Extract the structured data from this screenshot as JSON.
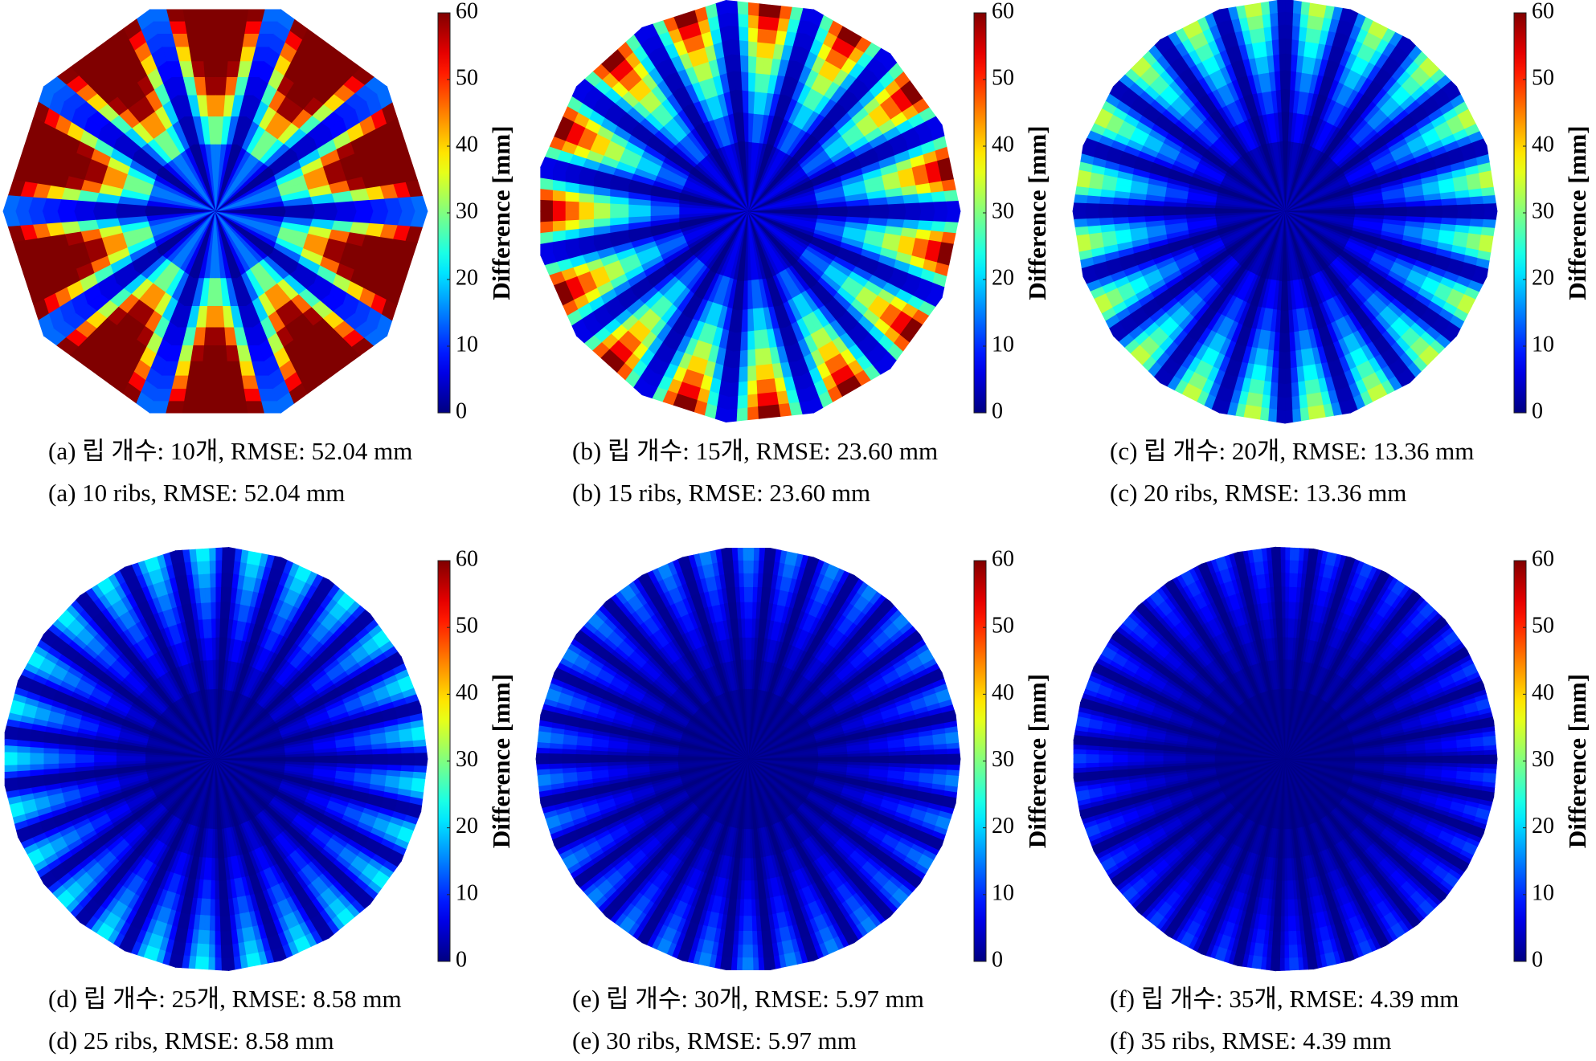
{
  "chart_data": [
    {
      "type": "polar-heatmap",
      "ribs": 10,
      "rmse": 52.04,
      "caption_ko": "(a) 립 개수: 10개, RMSE: 52.04 mm",
      "caption_en": "(a) 10 ribs, RMSE: 52.04 mm",
      "colorbar_label": "Difference [mm]",
      "clim": [
        0,
        60
      ],
      "cticks": [
        0,
        10,
        20,
        30,
        40,
        50,
        60
      ],
      "colormap": "jet"
    },
    {
      "type": "polar-heatmap",
      "ribs": 15,
      "rmse": 23.6,
      "caption_ko": "(b) 립 개수: 15개, RMSE: 23.60 mm",
      "caption_en": "(b) 15 ribs, RMSE: 23.60 mm",
      "colorbar_label": "Difference [mm]",
      "clim": [
        0,
        60
      ],
      "cticks": [
        0,
        10,
        20,
        30,
        40,
        50,
        60
      ],
      "colormap": "jet"
    },
    {
      "type": "polar-heatmap",
      "ribs": 20,
      "rmse": 13.36,
      "caption_ko": "(c) 립 개수: 20개, RMSE: 13.36 mm",
      "caption_en": "(c) 20 ribs, RMSE: 13.36 mm",
      "colorbar_label": "Difference [mm]",
      "clim": [
        0,
        60
      ],
      "cticks": [
        0,
        10,
        20,
        30,
        40,
        50,
        60
      ],
      "colormap": "jet"
    },
    {
      "type": "polar-heatmap",
      "ribs": 25,
      "rmse": 8.58,
      "caption_ko": "(d) 립 개수: 25개, RMSE: 8.58 mm",
      "caption_en": "(d) 25 ribs, RMSE: 8.58 mm",
      "colorbar_label": "Difference [mm]",
      "clim": [
        0,
        60
      ],
      "cticks": [
        0,
        10,
        20,
        30,
        40,
        50,
        60
      ],
      "colormap": "jet"
    },
    {
      "type": "polar-heatmap",
      "ribs": 30,
      "rmse": 5.97,
      "caption_ko": "(e) 립 개수: 30개, RMSE: 5.97 mm",
      "caption_en": "(e) 30 ribs, RMSE: 5.97 mm",
      "colorbar_label": "Difference [mm]",
      "clim": [
        0,
        60
      ],
      "cticks": [
        0,
        10,
        20,
        30,
        40,
        50,
        60
      ],
      "colormap": "jet"
    },
    {
      "type": "polar-heatmap",
      "ribs": 35,
      "rmse": 4.39,
      "caption_ko": "(f) 립 개수: 35개, RMSE: 4.39 mm",
      "caption_en": "(f) 35 ribs, RMSE: 4.39 mm",
      "colorbar_label": "Difference [mm]",
      "clim": [
        0,
        60
      ],
      "cticks": [
        0,
        10,
        20,
        30,
        40,
        50,
        60
      ],
      "colormap": "jet"
    }
  ]
}
